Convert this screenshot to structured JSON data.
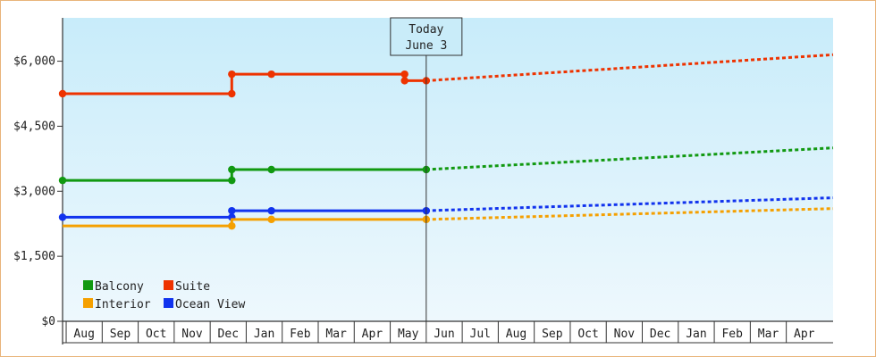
{
  "chart_data": {
    "type": "line",
    "title": "",
    "xlabel": "",
    "ylabel": "",
    "ylim": [
      0,
      7000
    ],
    "y_ticks": [
      {
        "value": 0,
        "label": "$0"
      },
      {
        "value": 1500,
        "label": "$1,500"
      },
      {
        "value": 3000,
        "label": "$3,000"
      },
      {
        "value": 4500,
        "label": "$4,500"
      },
      {
        "value": 6000,
        "label": "$6,000"
      }
    ],
    "x_categories": [
      "Aug",
      "Sep",
      "Oct",
      "Nov",
      "Dec",
      "Jan",
      "Feb",
      "Mar",
      "Apr",
      "May",
      "Jun",
      "Jul",
      "Aug",
      "Sep",
      "Oct",
      "Nov",
      "Dec",
      "Jan",
      "Feb",
      "Mar",
      "Apr"
    ],
    "x_range": [
      -0.6,
      20.8
    ],
    "grid": "none",
    "background": "sky gradient",
    "today_marker": {
      "x": 9.5,
      "line1": "Today",
      "line2": "June 3"
    },
    "legend": {
      "placement": "bottom-left",
      "entries": [
        {
          "label": "Balcony",
          "color": "#119911"
        },
        {
          "label": "Suite",
          "color": "#ee3300"
        },
        {
          "label": "Interior",
          "color": "#f5a000"
        },
        {
          "label": "Ocean View",
          "color": "#1133ee"
        }
      ]
    },
    "series": [
      {
        "color": "#ee3300",
        "history": [
          [
            -0.6,
            5250
          ],
          [
            4.1,
            5250
          ],
          [
            4.1,
            5700
          ],
          [
            5.2,
            5700
          ],
          [
            8.9,
            5700
          ],
          [
            8.9,
            5550
          ],
          [
            9.5,
            5550
          ]
        ],
        "markers": [
          [
            -0.6,
            5250
          ],
          [
            4.1,
            5250
          ],
          [
            4.1,
            5700
          ],
          [
            5.2,
            5700
          ],
          [
            8.9,
            5700
          ],
          [
            8.9,
            5550
          ],
          [
            9.5,
            5550
          ]
        ],
        "forecast": [
          [
            9.5,
            5550
          ],
          [
            20.8,
            6150
          ]
        ]
      },
      {
        "color": "#119911",
        "history": [
          [
            -0.6,
            3250
          ],
          [
            4.1,
            3250
          ],
          [
            4.1,
            3500
          ],
          [
            5.2,
            3500
          ],
          [
            9.5,
            3500
          ]
        ],
        "markers": [
          [
            -0.6,
            3250
          ],
          [
            4.1,
            3250
          ],
          [
            4.1,
            3500
          ],
          [
            5.2,
            3500
          ],
          [
            9.5,
            3500
          ]
        ],
        "forecast": [
          [
            9.5,
            3500
          ],
          [
            20.8,
            4000
          ]
        ]
      },
      {
        "color": "#1133ee",
        "history": [
          [
            -0.6,
            2400
          ],
          [
            4.1,
            2400
          ],
          [
            4.1,
            2550
          ],
          [
            5.2,
            2550
          ],
          [
            9.5,
            2550
          ]
        ],
        "markers": [
          [
            -0.6,
            2400
          ],
          [
            4.1,
            2400
          ],
          [
            4.1,
            2550
          ],
          [
            5.2,
            2550
          ],
          [
            9.5,
            2550
          ]
        ],
        "forecast": [
          [
            9.5,
            2550
          ],
          [
            20.8,
            2850
          ]
        ]
      },
      {
        "color": "#f5a000",
        "history": [
          [
            -0.6,
            2200
          ],
          [
            4.1,
            2200
          ],
          [
            4.1,
            2350
          ],
          [
            5.2,
            2350
          ],
          [
            9.5,
            2350
          ]
        ],
        "markers": [
          [
            4.1,
            2200
          ],
          [
            5.2,
            2350
          ],
          [
            9.5,
            2350
          ]
        ],
        "forecast": [
          [
            9.5,
            2350
          ],
          [
            20.8,
            2600
          ]
        ]
      }
    ]
  }
}
